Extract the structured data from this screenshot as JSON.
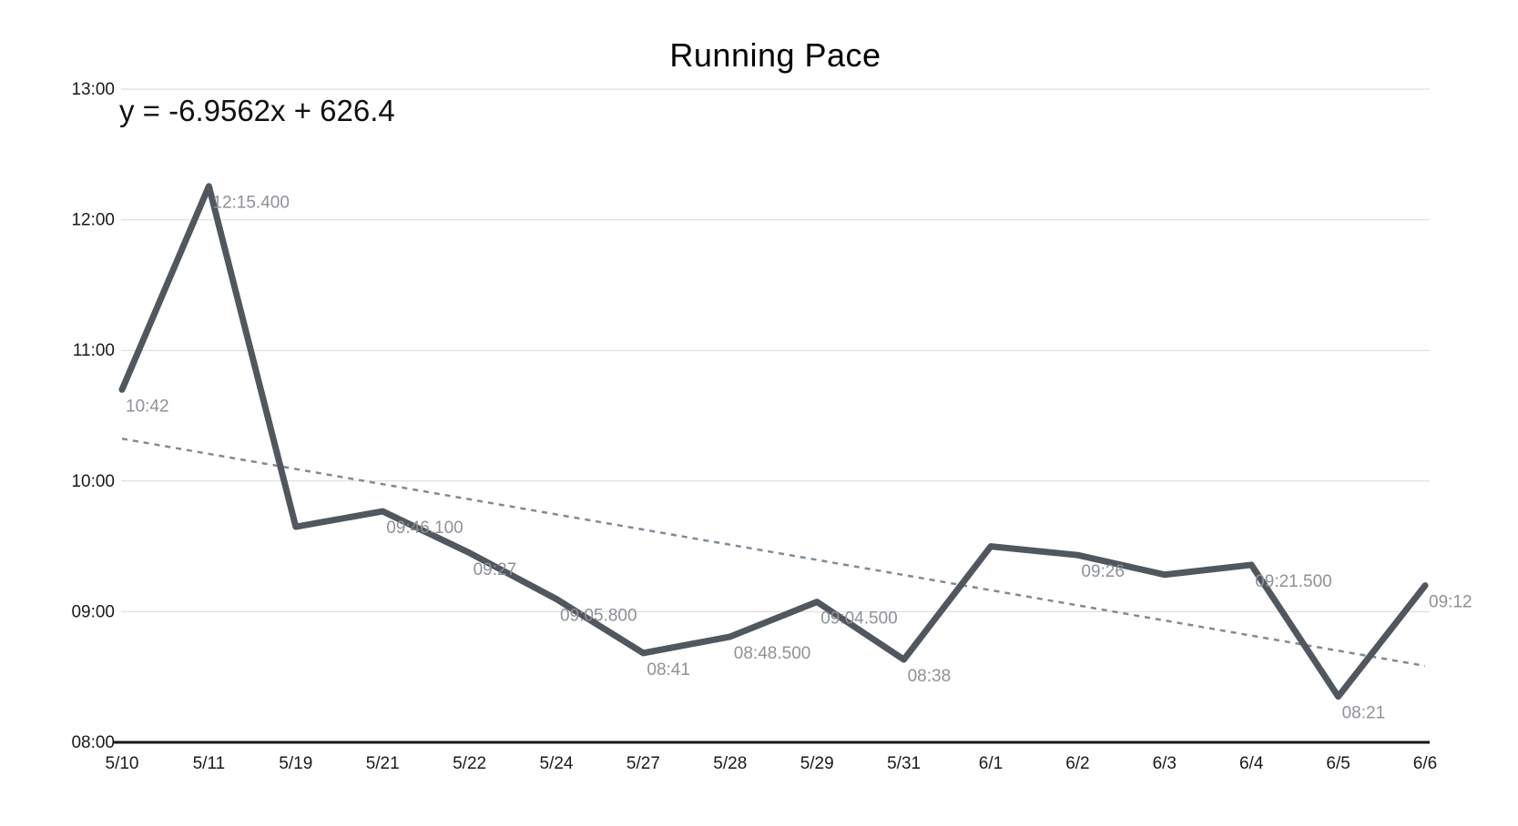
{
  "page": {
    "background": "#ffffff"
  },
  "chart_data": {
    "type": "line",
    "title": "Running Pace",
    "equation_label": "y = -6.9562x + 626.4",
    "xlabel": "",
    "ylabel": "",
    "legend": "none",
    "grid": "horizontal",
    "y_axis": {
      "unit": "pace mm:ss",
      "min_seconds": 480,
      "max_seconds": 780,
      "ticks": [
        {
          "label": "13:00",
          "seconds": 780
        },
        {
          "label": "12:00",
          "seconds": 720
        },
        {
          "label": "11:00",
          "seconds": 660
        },
        {
          "label": "10:00",
          "seconds": 600
        },
        {
          "label": "09:00",
          "seconds": 540
        },
        {
          "label": "08:00",
          "seconds": 480
        }
      ]
    },
    "x_tick_labels": [
      "5/10",
      "5/11",
      "5/19",
      "5/21",
      "5/22",
      "5/24",
      "5/27",
      "5/28",
      "5/29",
      "5/31",
      "6/1",
      "6/2",
      "6/3",
      "6/4",
      "6/5",
      "6/6"
    ],
    "series": [
      {
        "name": "running-pace",
        "points": [
          {
            "date": "5/10",
            "label": "10:42",
            "seconds": 642.0
          },
          {
            "date": "5/11",
            "label": "12:15.400",
            "seconds": 735.4
          },
          {
            "date": "5/19",
            "label": "",
            "seconds": 579.0
          },
          {
            "date": "5/21",
            "label": "09:46.100",
            "seconds": 586.1
          },
          {
            "date": "5/22",
            "label": "09:27",
            "seconds": 567.0
          },
          {
            "date": "5/24",
            "label": "09:05.800",
            "seconds": 545.8
          },
          {
            "date": "5/27",
            "label": "08:41",
            "seconds": 521.0
          },
          {
            "date": "5/28",
            "label": "08:48.500",
            "seconds": 528.5
          },
          {
            "date": "5/29",
            "label": "09:04.500",
            "seconds": 544.5
          },
          {
            "date": "5/31",
            "label": "08:38",
            "seconds": 518.0
          },
          {
            "date": "6/1",
            "label": "",
            "seconds": 570.0
          },
          {
            "date": "6/2",
            "label": "09:26",
            "seconds": 566.0
          },
          {
            "date": "6/3",
            "label": "",
            "seconds": 557.0
          },
          {
            "date": "6/4",
            "label": "09:21.500",
            "seconds": 561.5
          },
          {
            "date": "6/5",
            "label": "08:21",
            "seconds": 501.0
          },
          {
            "date": "6/6",
            "label": "09:12",
            "seconds": 552.0
          }
        ]
      }
    ],
    "trendline": {
      "style": "dashed",
      "slope_seconds_per_run": -6.9562,
      "intercept_seconds": 626.4,
      "x_is_run_index_starting_at": 1
    },
    "colors": {
      "series_line": "#50575f",
      "data_labels": "#8e9196",
      "trendline": "#7f8b95",
      "gridline": "#d9d9d9",
      "axis_line": "#161616",
      "tick_text": "#1a1a1a",
      "title_text": "#000000"
    }
  }
}
